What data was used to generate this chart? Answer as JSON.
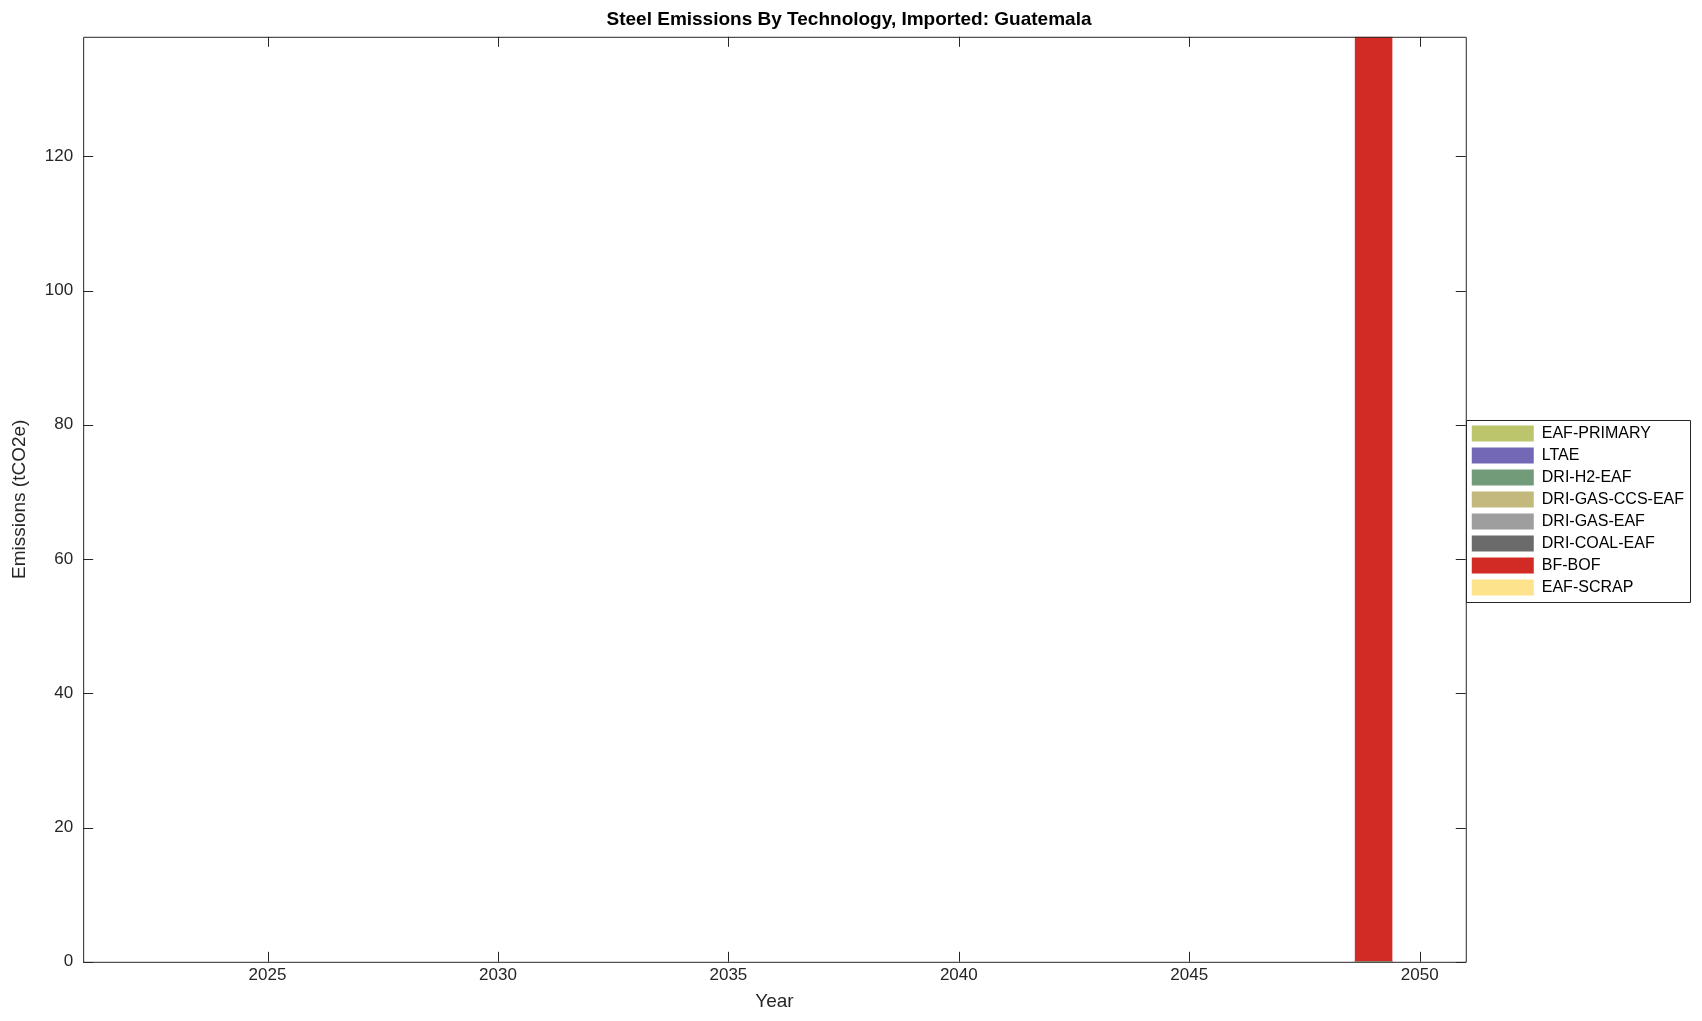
{
  "chart_data": {
    "type": "bar",
    "title": "Steel Emissions By Technology, Imported: Guatemala",
    "xlabel": "Year",
    "ylabel": "Emissions (tCO2e)",
    "stacked": true,
    "x": [
      2049
    ],
    "series": [
      {
        "name": "EAF-PRIMARY",
        "color": "#bcc46c",
        "values": [
          0
        ]
      },
      {
        "name": "LTAE",
        "color": "#7268b5",
        "values": [
          0
        ]
      },
      {
        "name": "DRI-H2-EAF",
        "color": "#729b7a",
        "values": [
          0
        ]
      },
      {
        "name": "DRI-GAS-CCS-EAF",
        "color": "#c4b97c",
        "values": [
          0
        ]
      },
      {
        "name": "DRI-GAS-EAF",
        "color": "#9e9e9e",
        "values": [
          0
        ]
      },
      {
        "name": "DRI-COAL-EAF",
        "color": "#6b6b6b",
        "values": [
          0
        ]
      },
      {
        "name": "BF-BOF",
        "color": "#d22b26",
        "values": [
          137.8
        ]
      },
      {
        "name": "EAF-SCRAP",
        "color": "#fde38c",
        "values": [
          0
        ]
      }
    ],
    "xlim": [
      2021,
      2051
    ],
    "xticks": [
      2025,
      2030,
      2035,
      2040,
      2045,
      2050
    ],
    "ylim": [
      0,
      137.8
    ],
    "yticks": [
      0,
      20,
      40,
      60,
      80,
      100,
      120
    ],
    "grid": false,
    "legend": "right"
  }
}
